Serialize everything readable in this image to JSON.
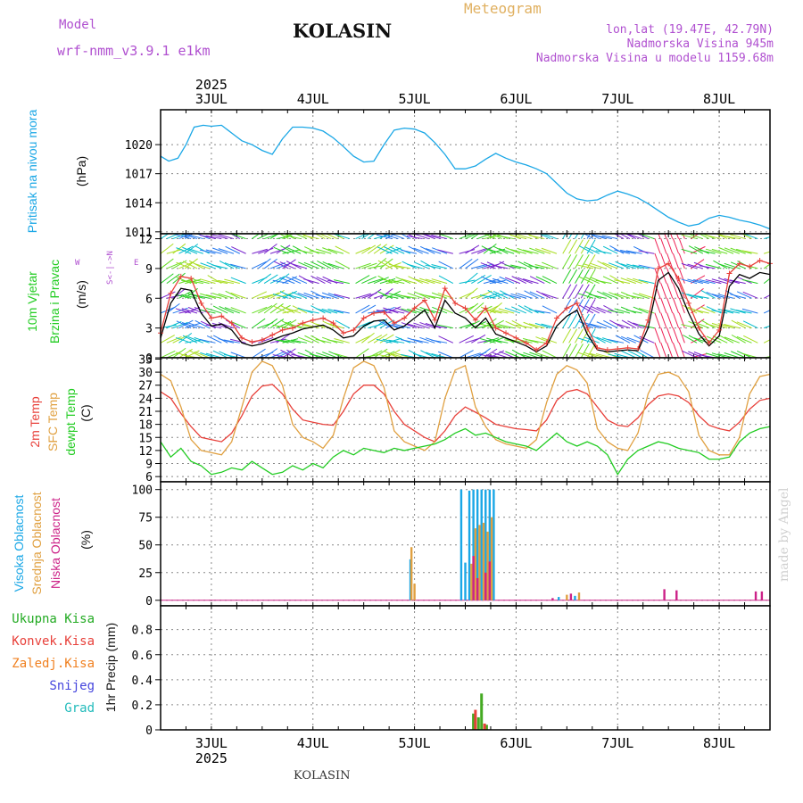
{
  "header": {
    "model_label": "Model",
    "model_name": "wrf-nmm_v3.9.1 e1km",
    "app_title": "Meteogram",
    "location_title": "KOLASIN",
    "coords": "lon,lat (19.47E, 42.79N)",
    "elevation": "Nadmorska Visina 945m",
    "model_elevation": "Nadmorska Visina u modelu 1159.68m",
    "footer_location": "KOLASIN",
    "watermark": "made by Angel"
  },
  "colors": {
    "pressure": "#1aa7e6",
    "wind_speed_red": "#e8403a",
    "wind_speed_black": "#000000",
    "t2m": "#e8403a",
    "sfc": "#e0a040",
    "dewpt": "#22cc22",
    "high_cloud": "#1aa7e6",
    "mid_cloud": "#e0a040",
    "low_cloud": "#cc2288",
    "total_rain": "#44aa22",
    "conv_rain": "#e8403a",
    "ice": "#f08020",
    "snow": "#4444dd",
    "hail": "#22bbbb",
    "label_purple": "#b050d0",
    "label_orange": "#e0b060"
  },
  "chart_data": [
    {
      "type": "line",
      "id": "pressure",
      "panel_label": "Pritisak na nivou mora",
      "ylabel": "(hPa)",
      "year_top": "2025",
      "day_labels": [
        "3JUL",
        "4JUL",
        "5JUL",
        "6JUL",
        "7JUL",
        "8JUL"
      ],
      "xlim": [
        2.5,
        8.5
      ],
      "ylim": [
        1010.8,
        1023.6
      ],
      "yticks": [
        1011,
        1014,
        1017,
        1020
      ],
      "series": [
        {
          "color_key": "pressure",
          "x": [
            2.5,
            2.58,
            2.67,
            2.75,
            2.83,
            2.92,
            3.0,
            3.1,
            3.2,
            3.3,
            3.4,
            3.5,
            3.6,
            3.7,
            3.8,
            3.9,
            4.0,
            4.1,
            4.2,
            4.3,
            4.4,
            4.5,
            4.6,
            4.7,
            4.8,
            4.9,
            5.0,
            5.1,
            5.2,
            5.3,
            5.4,
            5.5,
            5.6,
            5.7,
            5.8,
            5.9,
            6.0,
            6.1,
            6.2,
            6.3,
            6.4,
            6.5,
            6.6,
            6.7,
            6.8,
            6.9,
            7.0,
            7.1,
            7.2,
            7.3,
            7.4,
            7.5,
            7.6,
            7.7,
            7.8,
            7.9,
            8.0,
            8.1,
            8.2,
            8.3,
            8.4,
            8.5
          ],
          "y": [
            1018.8,
            1018.3,
            1018.6,
            1020.0,
            1021.8,
            1022.0,
            1021.9,
            1022.0,
            1021.2,
            1020.4,
            1020.0,
            1019.4,
            1019.0,
            1020.6,
            1021.8,
            1021.8,
            1021.7,
            1021.4,
            1020.7,
            1019.8,
            1018.8,
            1018.2,
            1018.3,
            1020.0,
            1021.5,
            1021.7,
            1021.6,
            1021.2,
            1020.2,
            1019.0,
            1017.5,
            1017.5,
            1017.8,
            1018.5,
            1019.1,
            1018.6,
            1018.2,
            1017.9,
            1017.5,
            1017.0,
            1016.0,
            1015.0,
            1014.4,
            1014.2,
            1014.3,
            1014.8,
            1015.2,
            1014.9,
            1014.5,
            1013.9,
            1013.2,
            1012.5,
            1012.0,
            1011.6,
            1011.8,
            1012.4,
            1012.7,
            1012.5,
            1012.2,
            1012.0,
            1011.7,
            1011.3
          ]
        }
      ]
    },
    {
      "type": "line",
      "id": "wind",
      "panel_label_1": "10m Vjetar",
      "panel_label_2": "Brzina i Pravac",
      "ylabel": "(m/s)",
      "compass_north": "N",
      "compass_south": "S",
      "compass_east": "E",
      "compass_west": "W",
      "compass_axis": "<-|->",
      "xlim": [
        2.5,
        8.5
      ],
      "ylim": [
        0,
        12.5
      ],
      "yticks": [
        0,
        3,
        6,
        9,
        12
      ],
      "series": [
        {
          "color_key": "wind_speed_red",
          "x": [
            2.5,
            2.6,
            2.7,
            2.8,
            2.9,
            3.0,
            3.1,
            3.2,
            3.3,
            3.4,
            3.5,
            3.6,
            3.7,
            3.8,
            3.9,
            4.0,
            4.1,
            4.2,
            4.3,
            4.4,
            4.5,
            4.6,
            4.7,
            4.8,
            4.9,
            5.0,
            5.1,
            5.2,
            5.3,
            5.4,
            5.5,
            5.6,
            5.7,
            5.8,
            5.9,
            6.0,
            6.1,
            6.2,
            6.3,
            6.4,
            6.5,
            6.6,
            6.7,
            6.8,
            6.9,
            7.0,
            7.1,
            7.2,
            7.3,
            7.4,
            7.5,
            7.6,
            7.7,
            7.8,
            7.9,
            8.0,
            8.1,
            8.2,
            8.3,
            8.4,
            8.5
          ],
          "y": [
            2.5,
            6.5,
            8.2,
            8.0,
            5.5,
            4.0,
            4.2,
            3.5,
            2.0,
            1.6,
            1.8,
            2.3,
            2.8,
            3.0,
            3.5,
            3.8,
            4.0,
            3.5,
            2.5,
            2.8,
            4.0,
            4.5,
            4.6,
            3.5,
            4.0,
            5.0,
            5.8,
            3.8,
            7.0,
            5.5,
            5.0,
            3.8,
            5.0,
            3.0,
            2.5,
            2.0,
            1.5,
            0.8,
            1.5,
            4.0,
            5.0,
            5.5,
            3.0,
            1.0,
            0.8,
            0.9,
            1.0,
            0.9,
            3.8,
            9.0,
            9.5,
            8.0,
            5.5,
            3.0,
            1.5,
            2.8,
            8.5,
            9.5,
            9.2,
            9.8,
            9.5
          ]
        },
        {
          "color_key": "wind_speed_black",
          "x": [
            2.5,
            2.6,
            2.7,
            2.8,
            2.9,
            3.0,
            3.1,
            3.2,
            3.3,
            3.4,
            3.5,
            3.6,
            3.7,
            3.8,
            3.9,
            4.0,
            4.1,
            4.2,
            4.3,
            4.4,
            4.5,
            4.6,
            4.7,
            4.8,
            4.9,
            5.0,
            5.1,
            5.2,
            5.3,
            5.4,
            5.5,
            5.6,
            5.7,
            5.8,
            5.9,
            6.0,
            6.1,
            6.2,
            6.3,
            6.4,
            6.5,
            6.6,
            6.7,
            6.8,
            6.9,
            7.0,
            7.1,
            7.2,
            7.3,
            7.4,
            7.5,
            7.6,
            7.7,
            7.8,
            7.9,
            8.0,
            8.1,
            8.2,
            8.3,
            8.4,
            8.5
          ],
          "y": [
            2.0,
            5.5,
            7.0,
            6.8,
            4.5,
            3.2,
            3.4,
            2.8,
            1.5,
            1.2,
            1.4,
            1.8,
            2.2,
            2.5,
            2.9,
            3.1,
            3.3,
            2.8,
            2.0,
            2.2,
            3.2,
            3.7,
            3.8,
            2.8,
            3.2,
            4.0,
            4.8,
            3.0,
            5.8,
            4.5,
            4.0,
            3.0,
            4.0,
            2.4,
            2.0,
            1.6,
            1.2,
            0.6,
            1.2,
            3.2,
            4.2,
            4.8,
            2.4,
            0.8,
            0.6,
            0.7,
            0.8,
            0.7,
            3.0,
            7.8,
            8.6,
            7.0,
            4.5,
            2.4,
            1.2,
            2.2,
            7.2,
            8.4,
            8.0,
            8.6,
            8.4
          ]
        }
      ]
    },
    {
      "type": "line",
      "id": "temperature",
      "panel_label_1": "2m Temp",
      "panel_label_2": "SFC Temp",
      "panel_label_3": "dewpt Temp",
      "ylabel": "(C)",
      "xlim": [
        2.5,
        8.5
      ],
      "ylim": [
        4.8,
        33.3
      ],
      "yticks": [
        6,
        9,
        12,
        15,
        18,
        21,
        24,
        27,
        30,
        33
      ],
      "series": [
        {
          "color_key": "t2m",
          "x": [
            2.5,
            2.6,
            2.7,
            2.8,
            2.9,
            3.0,
            3.1,
            3.2,
            3.3,
            3.4,
            3.5,
            3.6,
            3.7,
            3.8,
            3.9,
            4.0,
            4.1,
            4.2,
            4.3,
            4.4,
            4.5,
            4.6,
            4.7,
            4.8,
            4.9,
            5.0,
            5.1,
            5.2,
            5.3,
            5.4,
            5.5,
            5.6,
            5.7,
            5.8,
            5.9,
            6.0,
            6.1,
            6.2,
            6.3,
            6.4,
            6.5,
            6.6,
            6.7,
            6.8,
            6.9,
            7.0,
            7.1,
            7.2,
            7.3,
            7.4,
            7.5,
            7.6,
            7.7,
            7.8,
            7.9,
            8.0,
            8.1,
            8.2,
            8.3,
            8.4,
            8.5
          ],
          "y": [
            25.5,
            24.0,
            20.5,
            17.5,
            15.0,
            14.5,
            14.0,
            16.0,
            20.0,
            24.5,
            26.8,
            27.2,
            25.0,
            21.5,
            19.0,
            18.5,
            18.0,
            17.8,
            21.0,
            25.0,
            27.0,
            27.0,
            25.0,
            21.0,
            18.0,
            16.5,
            15.0,
            14.0,
            16.5,
            20.0,
            22.0,
            20.8,
            19.5,
            18.0,
            17.5,
            17.0,
            16.8,
            16.5,
            19.0,
            23.5,
            25.5,
            26.0,
            25.0,
            22.0,
            19.0,
            17.8,
            17.5,
            19.5,
            22.5,
            24.5,
            25.0,
            24.5,
            23.0,
            20.0,
            17.8,
            17.0,
            16.5,
            18.5,
            21.5,
            23.5,
            24.0
          ]
        },
        {
          "color_key": "sfc",
          "x": [
            2.5,
            2.6,
            2.7,
            2.8,
            2.9,
            3.0,
            3.1,
            3.2,
            3.3,
            3.4,
            3.5,
            3.6,
            3.7,
            3.8,
            3.9,
            4.0,
            4.1,
            4.2,
            4.3,
            4.4,
            4.5,
            4.6,
            4.7,
            4.8,
            4.9,
            5.0,
            5.1,
            5.2,
            5.3,
            5.4,
            5.5,
            5.6,
            5.7,
            5.8,
            5.9,
            6.0,
            6.1,
            6.2,
            6.3,
            6.4,
            6.5,
            6.6,
            6.7,
            6.8,
            6.9,
            7.0,
            7.1,
            7.2,
            7.3,
            7.4,
            7.5,
            7.6,
            7.7,
            7.8,
            7.9,
            8.0,
            8.1,
            8.2,
            8.3,
            8.4,
            8.5
          ],
          "y": [
            29.5,
            28.0,
            22.0,
            14.5,
            12.0,
            11.5,
            11.0,
            14.0,
            22.0,
            30.0,
            32.5,
            31.5,
            27.0,
            18.0,
            15.0,
            14.0,
            12.5,
            15.5,
            24.0,
            31.0,
            32.5,
            31.5,
            26.5,
            16.5,
            14.0,
            13.0,
            12.0,
            14.0,
            24.0,
            30.5,
            31.5,
            22.0,
            17.5,
            14.5,
            13.5,
            13.0,
            12.5,
            14.5,
            23.0,
            29.5,
            31.5,
            30.5,
            27.5,
            17.0,
            14.0,
            12.5,
            12.0,
            16.0,
            25.0,
            29.5,
            30.0,
            29.0,
            25.5,
            15.5,
            12.0,
            11.0,
            11.0,
            15.0,
            25.0,
            29.0,
            29.5
          ]
        },
        {
          "color_key": "dewpt",
          "x": [
            2.5,
            2.6,
            2.7,
            2.8,
            2.9,
            3.0,
            3.1,
            3.2,
            3.3,
            3.4,
            3.5,
            3.6,
            3.7,
            3.8,
            3.9,
            4.0,
            4.1,
            4.2,
            4.3,
            4.4,
            4.5,
            4.6,
            4.7,
            4.8,
            4.9,
            5.0,
            5.1,
            5.2,
            5.3,
            5.4,
            5.5,
            5.6,
            5.7,
            5.8,
            5.9,
            6.0,
            6.1,
            6.2,
            6.3,
            6.4,
            6.5,
            6.6,
            6.7,
            6.8,
            6.9,
            7.0,
            7.1,
            7.2,
            7.3,
            7.4,
            7.5,
            7.6,
            7.7,
            7.8,
            7.9,
            8.0,
            8.1,
            8.2,
            8.3,
            8.4,
            8.5
          ],
          "y": [
            14.0,
            10.5,
            12.5,
            9.5,
            8.5,
            6.5,
            7.0,
            8.0,
            7.5,
            9.5,
            8.0,
            6.5,
            7.0,
            8.5,
            7.5,
            9.0,
            8.0,
            10.5,
            12.0,
            11.0,
            12.5,
            12.0,
            11.5,
            12.5,
            12.0,
            12.5,
            13.0,
            13.5,
            14.5,
            16.0,
            17.0,
            15.5,
            16.0,
            15.0,
            14.0,
            13.5,
            13.0,
            12.0,
            14.0,
            16.0,
            14.0,
            13.0,
            14.0,
            13.0,
            11.0,
            6.5,
            10.0,
            12.0,
            13.0,
            14.0,
            13.5,
            12.5,
            12.0,
            11.5,
            10.0,
            10.0,
            10.5,
            14.0,
            16.0,
            17.0,
            17.5
          ]
        }
      ]
    },
    {
      "type": "bar",
      "id": "clouds",
      "panel_label_1": "Visoka Oblacnost",
      "panel_label_2": "Srednja Oblacnost",
      "panel_label_3": "Niska Oblacnost",
      "ylabel": "(%)",
      "xlim": [
        2.5,
        8.5
      ],
      "ylim": [
        -5,
        107
      ],
      "yticks": [
        0,
        25,
        50,
        75,
        100
      ],
      "series": [
        {
          "color_key": "high_cloud",
          "x": [
            4.96,
            5.46,
            5.5,
            5.54,
            5.58,
            5.62,
            5.66,
            5.7,
            5.74,
            5.78,
            6.42,
            6.58
          ],
          "y": [
            37,
            100,
            34,
            99,
            100,
            100,
            100,
            100,
            100,
            100,
            3,
            4
          ]
        },
        {
          "color_key": "mid_cloud",
          "x": [
            4.97,
            5.0,
            5.56,
            5.6,
            5.64,
            5.68,
            5.72,
            5.76,
            6.5,
            6.62
          ],
          "y": [
            48,
            15,
            33,
            65,
            68,
            70,
            62,
            75,
            5,
            7
          ]
        },
        {
          "color_key": "low_cloud",
          "x": [
            5.58,
            5.62,
            5.7,
            5.74,
            6.36,
            6.54,
            7.46,
            7.58,
            8.36,
            8.42
          ],
          "y": [
            40,
            20,
            25,
            35,
            2,
            6,
            10,
            9,
            8,
            8
          ]
        }
      ]
    },
    {
      "type": "bar",
      "id": "precip",
      "panel_label_1": "Ukupna Kisa",
      "panel_label_2": "Konvek.Kisa",
      "panel_label_3": "Zaledj.Kisa",
      "panel_label_4": "Snijeg",
      "panel_label_5": "Grad",
      "ylabel": "1hr Precip (mm)",
      "year_bottom": "2025",
      "xlim": [
        2.5,
        8.5
      ],
      "ylim": [
        0,
        0.99
      ],
      "yticks": [
        0,
        0.2,
        0.4,
        0.6,
        0.8
      ],
      "series": [
        {
          "color_key": "total_rain",
          "x": [
            5.58,
            5.63,
            5.66,
            5.71
          ],
          "y": [
            0.13,
            0.1,
            0.29,
            0.04
          ]
        },
        {
          "color_key": "conv_rain",
          "x": [
            5.6,
            5.69
          ],
          "y": [
            0.16,
            0.05
          ]
        }
      ]
    }
  ]
}
